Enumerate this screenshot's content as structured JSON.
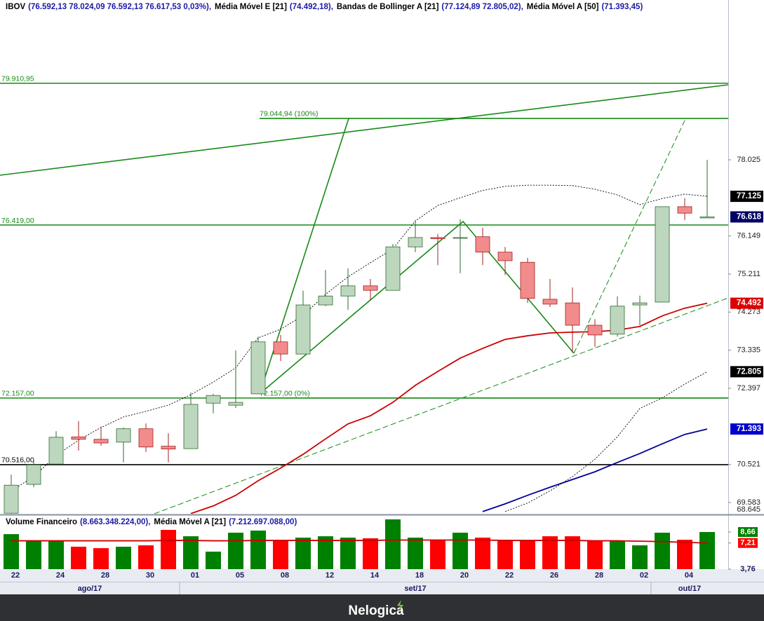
{
  "chart_data": [
    {
      "type": "candlestick",
      "header": [
        {
          "name": "IBOV",
          "value": "(76.592,13  78.024,09  76.592,13  76.617,53  0,03%),"
        },
        {
          "name": "Média Móvel E [21]",
          "value": "(74.492,18),"
        },
        {
          "name": "Bandas de Bollinger A [21]",
          "value": "(77.124,89  72.805,02),"
        },
        {
          "name": "Média Móvel A [50]",
          "value": "(71.393,45)"
        }
      ],
      "x": [
        "22",
        null,
        "24",
        null,
        "28",
        null,
        "30",
        null,
        "01",
        null,
        "05",
        null,
        "08",
        null,
        "12",
        null,
        "14",
        null,
        "18",
        null,
        "20",
        null,
        "22",
        null,
        "26",
        null,
        "28",
        null,
        "02",
        null,
        "04",
        null
      ],
      "months": [
        {
          "label": "ago/17",
          "start": 0
        },
        {
          "label": "set/17",
          "start": 8
        },
        {
          "label": "out/17",
          "start": 29
        }
      ],
      "open": [
        69320,
        70030,
        70530,
        71200,
        71140,
        71070,
        71400,
        70970,
        70910,
        72030,
        71980,
        72260,
        73540,
        73240,
        74450,
        74670,
        74920,
        74810,
        75880,
        76110,
        76090,
        76130,
        75750,
        75500,
        74590,
        74500,
        73950,
        73730,
        74450,
        74520,
        76870,
        76592.13
      ],
      "high": [
        70270,
        70650,
        71340,
        71590,
        71460,
        71430,
        71530,
        71290,
        72290,
        72260,
        73330,
        73670,
        73710,
        74800,
        75310,
        75350,
        75090,
        75950,
        76540,
        76200,
        76560,
        76350,
        75880,
        75610,
        75090,
        74880,
        74100,
        74660,
        74680,
        76870,
        77080,
        78024.09
      ],
      "low": [
        69200,
        69960,
        70530,
        70860,
        70980,
        70570,
        70830,
        70570,
        70910,
        71780,
        71910,
        72260,
        73070,
        73240,
        74420,
        74330,
        74570,
        74810,
        75750,
        75430,
        75230,
        75430,
        75190,
        74500,
        74400,
        73280,
        73420,
        73670,
        73950,
        74520,
        76540,
        76592.13
      ],
      "close": [
        70010,
        70510,
        71190,
        71140,
        71050,
        71400,
        70950,
        70900,
        72000,
        72220,
        72050,
        73540,
        73240,
        74450,
        74670,
        74920,
        74810,
        75880,
        76110,
        76080,
        76110,
        75750,
        75540,
        74610,
        74470,
        73950,
        73710,
        74420,
        74500,
        76870,
        76710,
        76617.53
      ],
      "up_color": "#bdd7be",
      "up_border": "#2e6b2e",
      "down_color": "#f28b8b",
      "down_border": "#a52020",
      "series": [
        {
          "color": "#cc0000",
          "style": "solid",
          "values": [
            null,
            null,
            null,
            null,
            null,
            null,
            null,
            null,
            69310,
            69500,
            69760,
            70120,
            70430,
            70770,
            71150,
            71520,
            71720,
            72050,
            72470,
            72810,
            73140,
            73380,
            73600,
            73690,
            73760,
            73780,
            73790,
            73830,
            73920,
            74180,
            74370,
            74492.18
          ]
        },
        {
          "color": "#000099",
          "style": "solid",
          "values": [
            null,
            null,
            null,
            null,
            null,
            null,
            null,
            null,
            null,
            null,
            null,
            null,
            null,
            null,
            null,
            null,
            null,
            null,
            null,
            null,
            null,
            69360,
            69550,
            69760,
            69960,
            70150,
            70340,
            70570,
            70790,
            71030,
            71260,
            71393.45
          ]
        },
        {
          "color": "#000000",
          "style": "dotted",
          "values": [
            69870,
            70220,
            70740,
            71120,
            71430,
            71690,
            71830,
            71980,
            72240,
            72550,
            72900,
            73640,
            73850,
            74190,
            74710,
            75140,
            75490,
            75830,
            76520,
            76900,
            77090,
            77270,
            77370,
            77400,
            77400,
            77390,
            77300,
            77160,
            76920,
            77070,
            77180,
            77124.89
          ]
        },
        {
          "color": "#000000",
          "style": "dotted",
          "values": [
            null,
            null,
            null,
            null,
            null,
            null,
            null,
            null,
            null,
            null,
            null,
            null,
            null,
            null,
            null,
            null,
            null,
            null,
            null,
            null,
            null,
            null,
            69360,
            69570,
            69870,
            70220,
            70650,
            71200,
            71900,
            72160,
            72500,
            72805.02
          ]
        }
      ],
      "ylim": [
        69306,
        81961
      ],
      "yticks": [
        {
          "value": 78025,
          "label": "78.025"
        },
        {
          "value": 76149,
          "label": "76.149"
        },
        {
          "value": 75211,
          "label": "75.211"
        },
        {
          "value": 74273,
          "label": "74.273"
        },
        {
          "value": 73335,
          "label": "73.335"
        },
        {
          "value": 72397,
          "label": "72.397"
        },
        {
          "value": 70521,
          "label": "70.521"
        },
        {
          "value": 69583,
          "label": "69.583"
        }
      ],
      "bottom_label": "68.645",
      "price_tags": [
        {
          "value": 77125,
          "label": "77.125",
          "color": "#000000"
        },
        {
          "value": 76618,
          "label": "76.618",
          "color": "#000066"
        },
        {
          "value": 74492,
          "label": "74.492",
          "color": "#dd0000"
        },
        {
          "value": 72805,
          "label": "72.805",
          "color": "#000000"
        },
        {
          "value": 71393,
          "label": "71.393",
          "color": "#0000cc"
        }
      ],
      "levels": [
        {
          "value": 79910.95,
          "label": "79.910,95",
          "color": "#178a17"
        },
        {
          "value": 76419,
          "label": "76.419,00",
          "color": "#178a17"
        },
        {
          "value": 72157,
          "label": "72.157,00",
          "color": "#178a17"
        },
        {
          "value": 70516,
          "label": "70.516,00",
          "color": "#000000"
        }
      ],
      "fibonacci": [
        {
          "value": 79044.94,
          "label": "79.044,94 (100%)",
          "color": "#178a17"
        },
        {
          "value": 72157,
          "label": "72.157,00 (0%)",
          "color": "#178a17"
        }
      ]
    },
    {
      "type": "bar",
      "header": [
        {
          "name": "Volume Financeiro",
          "value": "(8.663.348.224,00),"
        },
        {
          "name": "Média Móvel A [21]",
          "value": "(7.212.697.088,00)"
        }
      ],
      "values": [
        8.38,
        7.55,
        7.46,
        6.72,
        6.53,
        6.72,
        6.9,
        8.94,
        8.1,
        6.07,
        8.57,
        8.85,
        7.55,
        7.92,
        8.1,
        7.92,
        7.83,
        10.33,
        7.92,
        7.55,
        8.57,
        7.92,
        7.64,
        7.55,
        8.1,
        8.1,
        7.55,
        7.55,
        6.9,
        8.57,
        7.64,
        8.66
      ],
      "up_color": "#008000",
      "down_color": "#ff0000",
      "series": [
        {
          "color": "#cc0000",
          "values": [
            7.5,
            7.5,
            7.5,
            7.5,
            7.5,
            7.5,
            7.5,
            7.55,
            7.55,
            7.5,
            7.5,
            7.55,
            7.55,
            7.55,
            7.55,
            7.55,
            7.55,
            7.6,
            7.6,
            7.6,
            7.6,
            7.6,
            7.55,
            7.55,
            7.55,
            7.55,
            7.5,
            7.5,
            7.45,
            7.4,
            7.3,
            7.21
          ]
        }
      ],
      "ylim": [
        3.76,
        10.7
      ],
      "yticks": [
        {
          "value": 8.66,
          "label": "8,66",
          "color": "#008000"
        },
        {
          "value": 7.21,
          "label": "7,21",
          "color": "#ff0000"
        },
        {
          "value": 3.76,
          "label": "3,76"
        }
      ]
    }
  ],
  "footer": "Nelogica"
}
